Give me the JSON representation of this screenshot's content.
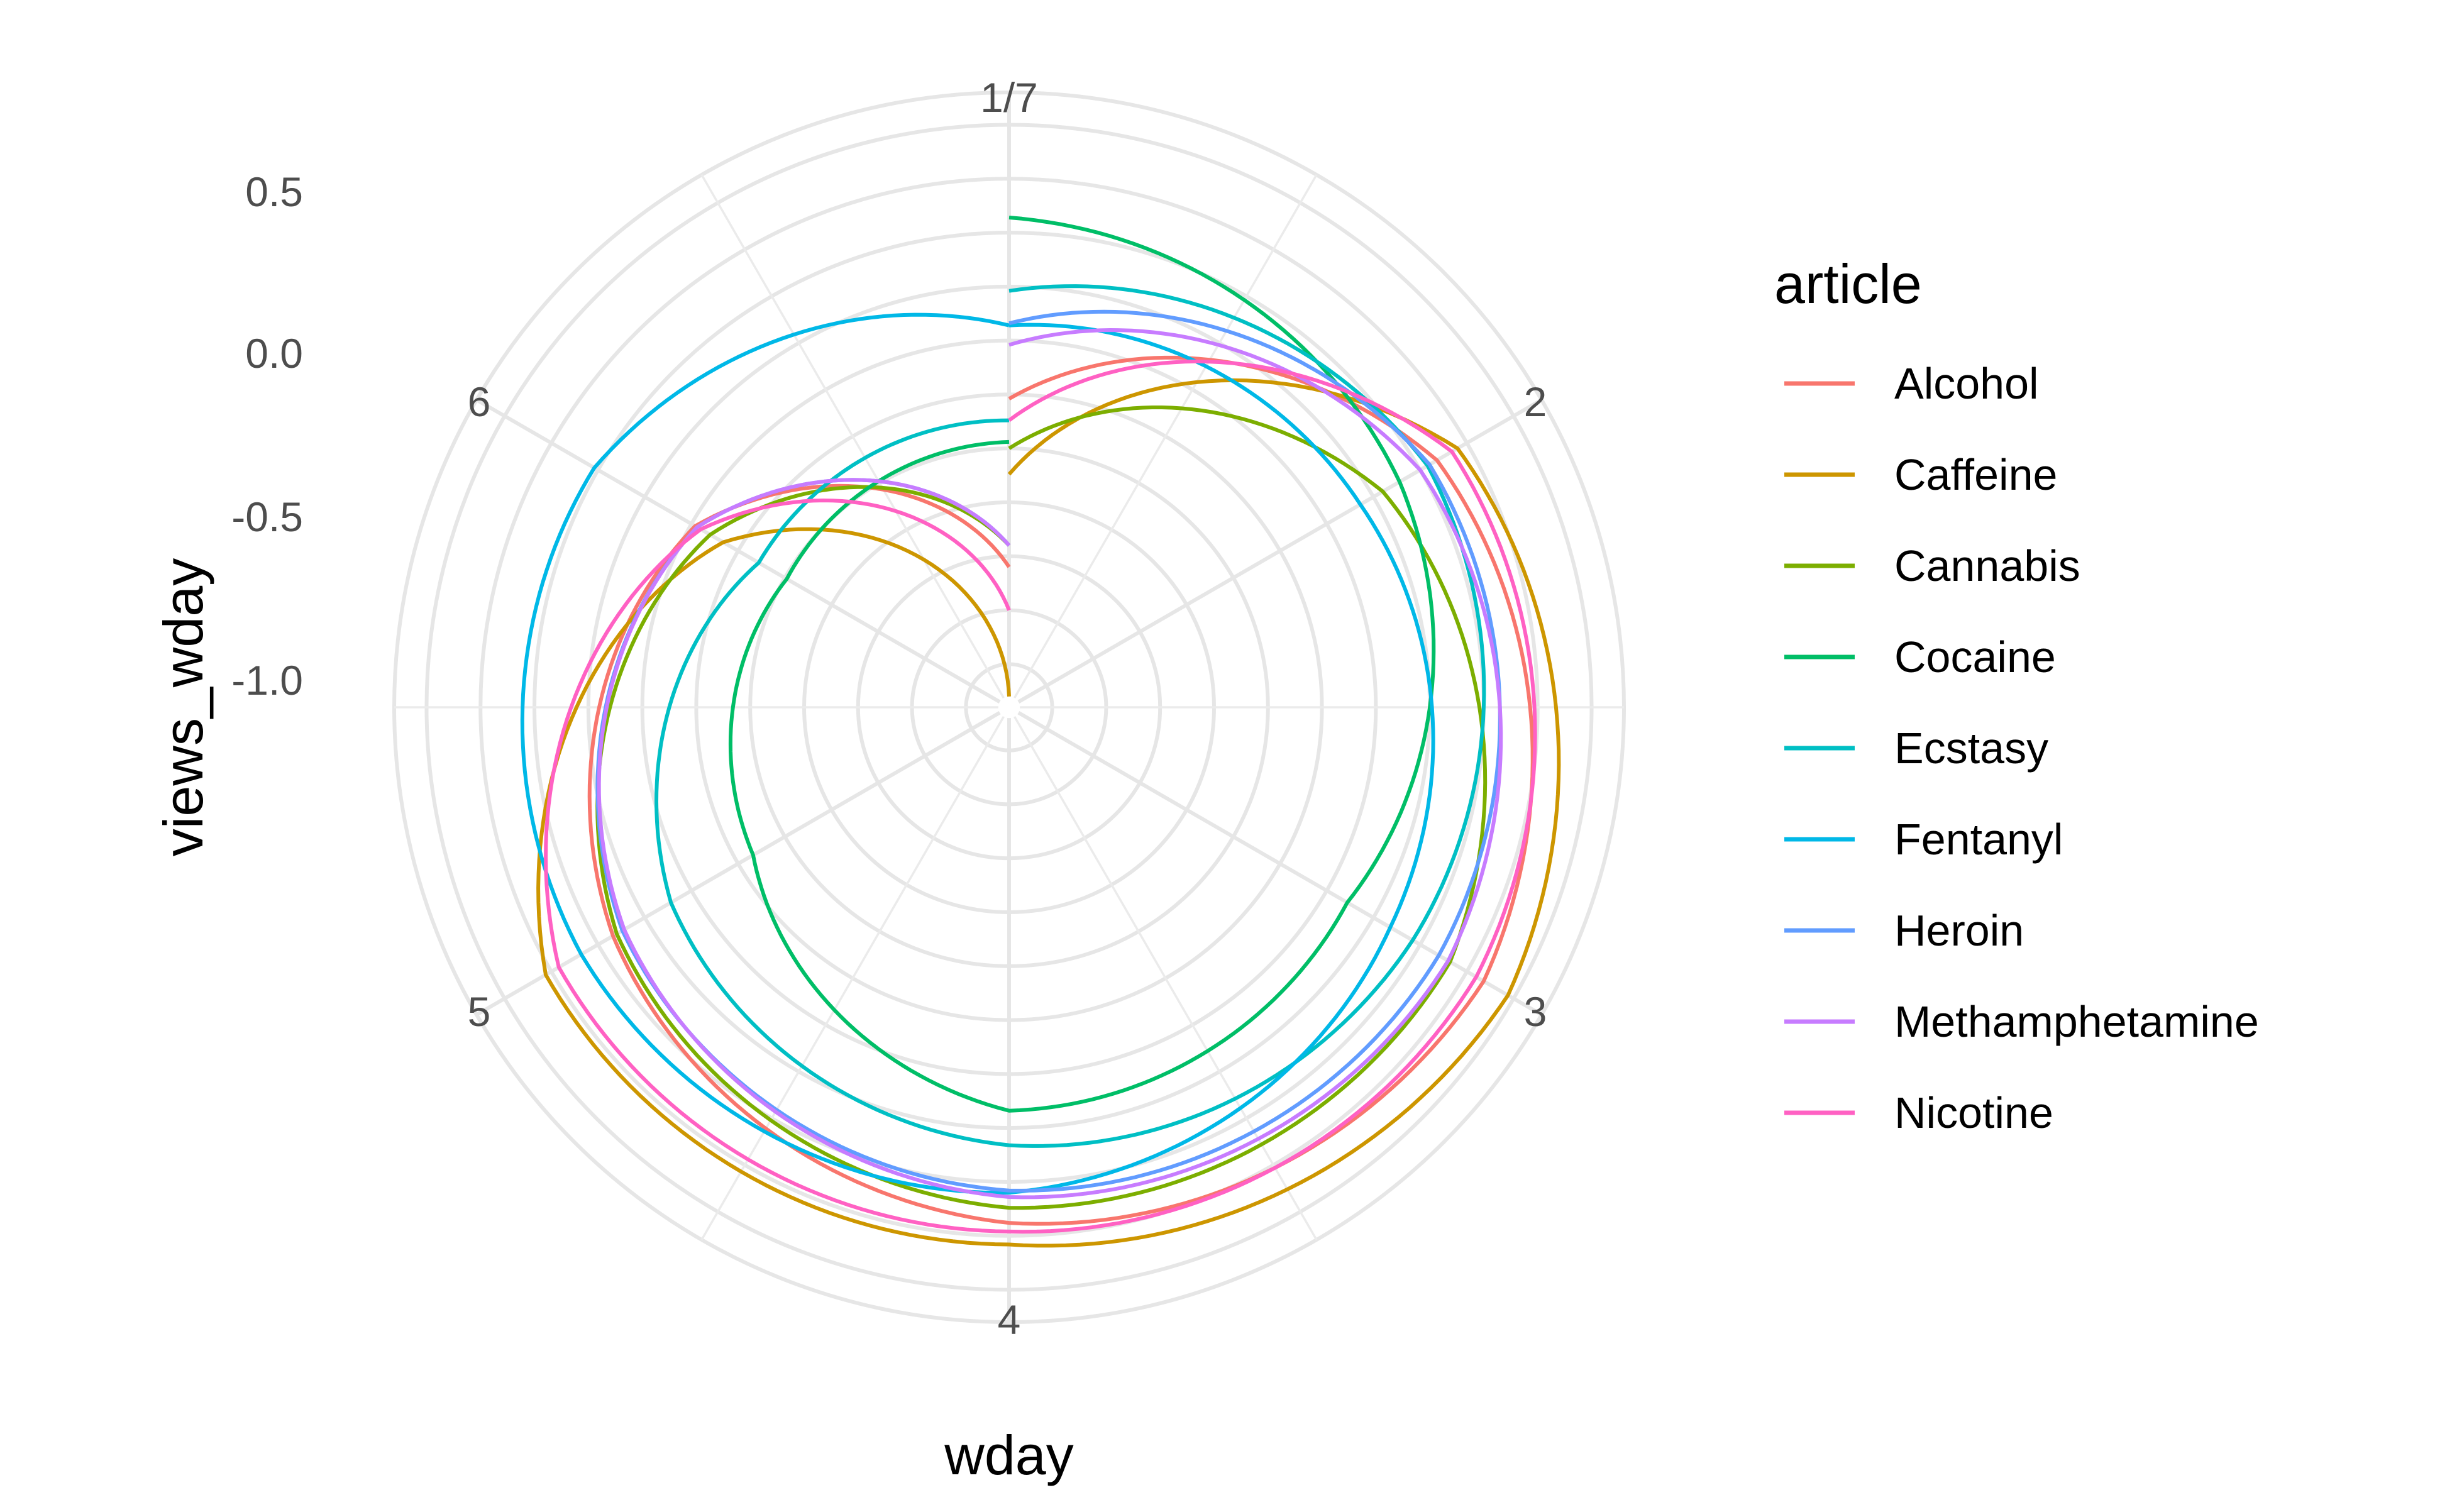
{
  "chart_data": {
    "type": "line",
    "coord": "polar",
    "x_label": "wday",
    "y_label": "views_wday",
    "x_ticks": [
      "1/7",
      "2",
      "3",
      "4",
      "5",
      "6"
    ],
    "x_range": [
      1,
      7
    ],
    "y_ticks": [
      "0.5",
      "0.0",
      "-0.5",
      "-1.0"
    ],
    "y_tick_values": [
      0.5,
      0.0,
      -0.5,
      -1.0
    ],
    "y_range": [
      -1.95,
      0.9
    ],
    "grid": true,
    "legend": {
      "title": "article",
      "position": "right"
    },
    "x": [
      1,
      2,
      3,
      4,
      5,
      6,
      7
    ],
    "series": [
      {
        "name": "Alcohol",
        "color": "#F8766D",
        "values": [
          -0.52,
          0.34,
          0.59,
          0.44,
          0.17,
          -0.27,
          -1.3
        ]
      },
      {
        "name": "Caffeine",
        "color": "#CD9600",
        "values": [
          -0.87,
          0.45,
          0.72,
          0.54,
          0.53,
          -0.42,
          -1.9
        ]
      },
      {
        "name": "Cannabis",
        "color": "#7CAE00",
        "values": [
          -0.75,
          0.05,
          0.41,
          0.37,
          0.15,
          -0.35,
          -1.2
        ]
      },
      {
        "name": "Cocaine",
        "color": "#00BE67",
        "values": [
          0.32,
          0.14,
          -0.14,
          -0.08,
          -0.58,
          -0.76,
          -0.72
        ]
      },
      {
        "name": "Ecstasy",
        "color": "#00BFC4",
        "values": [
          -0.02,
          0.29,
          0.21,
          0.08,
          -0.14,
          -0.61,
          -0.62
        ]
      },
      {
        "name": "Fentanyl",
        "color": "#00B8E7",
        "values": [
          -0.18,
          -0.07,
          0.09,
          0.3,
          0.34,
          0.27,
          -0.18
        ]
      },
      {
        "name": "Heroin",
        "color": "#619CFF",
        "values": [
          -0.17,
          0.3,
          0.35,
          0.29,
          0.12,
          -0.28,
          -1.2
        ]
      },
      {
        "name": "Methamphetamine",
        "color": "#C77CFF",
        "values": [
          -0.27,
          0.25,
          0.4,
          0.32,
          0.11,
          -0.28,
          -1.2
        ]
      },
      {
        "name": "Nicotine",
        "color": "#FF61C3",
        "values": [
          -0.62,
          0.42,
          0.55,
          0.48,
          0.46,
          -0.3,
          -1.5
        ]
      }
    ]
  }
}
